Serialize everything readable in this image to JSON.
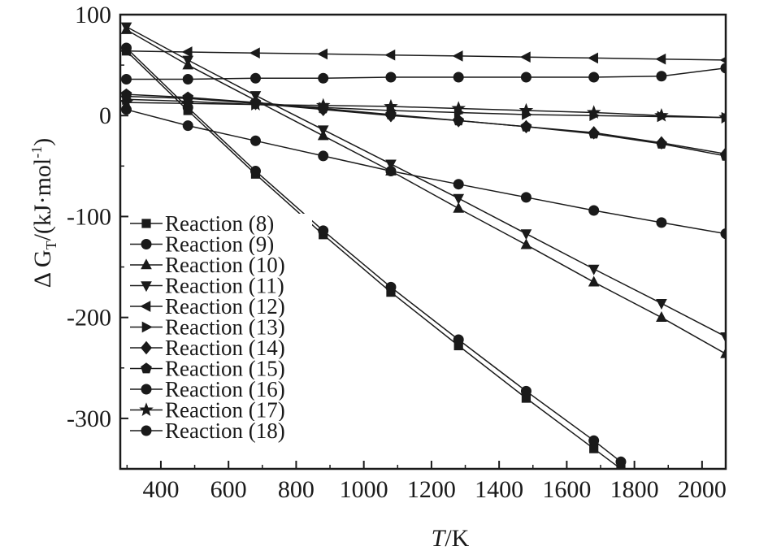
{
  "chart_data": {
    "type": "line",
    "title": "",
    "xlabel": {
      "main": "T",
      "unit": "/K"
    },
    "ylabel": {
      "prefix": "Δ G",
      "sub": "T",
      "unit": "/(kJ·mol",
      "unit_sup": "-1",
      "unit_end": ")"
    },
    "xlim": [
      280,
      2070
    ],
    "ylim": [
      -350,
      100
    ],
    "x_ticks": [
      400,
      600,
      800,
      1000,
      1200,
      1400,
      1600,
      1800,
      2000
    ],
    "y_ticks": [
      100,
      0,
      -100,
      -200,
      -300
    ],
    "x_tick_labels": [
      "400",
      "600",
      "800",
      "1000",
      "1200",
      "1400",
      "1600",
      "1800",
      "2000"
    ],
    "y_tick_labels": [
      "100",
      "0",
      "-100",
      "-200",
      "-300"
    ],
    "grid": false,
    "legend_position": "bottom-left",
    "series": [
      {
        "name": "Reaction (8)",
        "marker": "square",
        "x": [
          298,
          480,
          680,
          880,
          1080,
          1280,
          1480,
          1680,
          1760
        ],
        "y": [
          64,
          5,
          -58,
          -118,
          -175,
          -228,
          -280,
          -330,
          -350
        ]
      },
      {
        "name": "Reaction (9)",
        "marker": "circle",
        "x": [
          298,
          480,
          680,
          880,
          1080,
          1280,
          1480,
          1680,
          1760
        ],
        "y": [
          67,
          8,
          -55,
          -114,
          -170,
          -222,
          -273,
          -322,
          -343
        ]
      },
      {
        "name": "Reaction (10)",
        "marker": "triangle-up",
        "x": [
          298,
          480,
          680,
          880,
          1080,
          1280,
          1480,
          1680,
          1880,
          2070
        ],
        "y": [
          85,
          50,
          15,
          -20,
          -55,
          -92,
          -128,
          -165,
          -200,
          -236
        ]
      },
      {
        "name": "Reaction (11)",
        "marker": "triangle-down",
        "x": [
          298,
          480,
          680,
          880,
          1080,
          1280,
          1480,
          1680,
          1880,
          2070
        ],
        "y": [
          88,
          55,
          20,
          -14,
          -48,
          -82,
          -117,
          -152,
          -186,
          -219
        ]
      },
      {
        "name": "Reaction (12)",
        "marker": "triangle-left",
        "x": [
          298,
          480,
          680,
          880,
          1080,
          1280,
          1480,
          1680,
          1880,
          2070
        ],
        "y": [
          64,
          63,
          62,
          61,
          60,
          59,
          58,
          57,
          56,
          55
        ]
      },
      {
        "name": "Reaction (13)",
        "marker": "triangle-right",
        "x": [
          298,
          480,
          680,
          880,
          1080,
          1280,
          1480,
          1680,
          1880,
          2070
        ],
        "y": [
          16,
          14,
          11,
          8,
          5,
          3,
          1,
          0,
          -1,
          -2
        ]
      },
      {
        "name": "Reaction (14)",
        "marker": "diamond",
        "x": [
          298,
          480,
          680,
          880,
          1080,
          1280,
          1480,
          1680,
          1880,
          2070
        ],
        "y": [
          19,
          17,
          12,
          6,
          0,
          -5,
          -11,
          -17,
          -27,
          -38
        ]
      },
      {
        "name": "Reaction (15)",
        "marker": "pentagon",
        "x": [
          298,
          480,
          680,
          880,
          1080,
          1280,
          1480,
          1680,
          1880,
          2070
        ],
        "y": [
          21,
          18,
          13,
          7,
          1,
          -5,
          -11,
          -18,
          -28,
          -40
        ]
      },
      {
        "name": "Reaction (16)",
        "marker": "circle",
        "x": [
          298,
          480,
          680,
          880,
          1080,
          1280,
          1480,
          1680,
          1880,
          2070
        ],
        "y": [
          36,
          36,
          37,
          37,
          38,
          38,
          38,
          38,
          39,
          47
        ]
      },
      {
        "name": "Reaction (17)",
        "marker": "star",
        "x": [
          298,
          480,
          680,
          880,
          1080,
          1280,
          1480,
          1680,
          1880,
          2070
        ],
        "y": [
          13,
          12,
          11,
          10,
          9,
          7,
          5,
          3,
          0,
          -2
        ]
      },
      {
        "name": "Reaction (18)",
        "marker": "circle",
        "x": [
          298,
          480,
          680,
          880,
          1080,
          1280,
          1480,
          1680,
          1880,
          2070
        ],
        "y": [
          6,
          -10,
          -25,
          -40,
          -55,
          -68,
          -81,
          -94,
          -106,
          -117
        ]
      }
    ]
  }
}
